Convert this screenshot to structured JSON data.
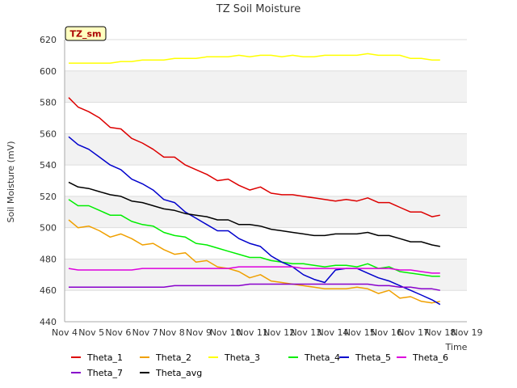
{
  "chart_data": {
    "type": "line",
    "title": "TZ Soil Moisture",
    "xlabel": "Time",
    "ylabel": "Soil Moisture (mV)",
    "badge": "TZ_sm",
    "ylim": [
      440,
      620
    ],
    "yticks": [
      440,
      460,
      480,
      500,
      520,
      540,
      560,
      580,
      600,
      620
    ],
    "xlim": [
      0,
      15
    ],
    "xticks": [
      {
        "v": 0,
        "label": "Nov 4"
      },
      {
        "v": 1,
        "label": "Nov 5"
      },
      {
        "v": 2,
        "label": "Nov 6"
      },
      {
        "v": 3,
        "label": "Nov 7"
      },
      {
        "v": 4,
        "label": "Nov 8"
      },
      {
        "v": 5,
        "label": "Nov 9"
      },
      {
        "v": 6,
        "label": "Nov 10"
      },
      {
        "v": 7,
        "label": "Nov 11"
      },
      {
        "v": 8,
        "label": "Nov 12"
      },
      {
        "v": 9,
        "label": "Nov 13"
      },
      {
        "v": 10,
        "label": "Nov 14"
      },
      {
        "v": 11,
        "label": "Nov 15"
      },
      {
        "v": 12,
        "label": "Nov 16"
      },
      {
        "v": 13,
        "label": "Nov 17"
      },
      {
        "v": 14,
        "label": "Nov 18"
      },
      {
        "v": 15,
        "label": "Nov 19"
      }
    ],
    "series": [
      {
        "name": "Theta_1",
        "color": "#dd0000",
        "x": [
          0.15,
          0.5,
          0.9,
          1.3,
          1.7,
          2.1,
          2.5,
          2.9,
          3.3,
          3.7,
          4.1,
          4.5,
          4.9,
          5.3,
          5.7,
          6.1,
          6.5,
          6.9,
          7.3,
          7.7,
          8.1,
          8.5,
          8.9,
          9.3,
          9.7,
          10.1,
          10.5,
          10.9,
          11.3,
          11.7,
          12.1,
          12.5,
          12.9,
          13.3,
          13.7,
          14.0
        ],
        "y": [
          583,
          577,
          574,
          570,
          564,
          563,
          557,
          554,
          550,
          545,
          545,
          540,
          537,
          534,
          530,
          531,
          527,
          524,
          526,
          522,
          521,
          521,
          520,
          519,
          518,
          517,
          518,
          517,
          519,
          516,
          516,
          513,
          510,
          510,
          507,
          508
        ]
      },
      {
        "name": "Theta_2",
        "color": "#f0a000",
        "x": [
          0.15,
          0.5,
          0.9,
          1.3,
          1.7,
          2.1,
          2.5,
          2.9,
          3.3,
          3.7,
          4.1,
          4.5,
          4.9,
          5.3,
          5.7,
          6.1,
          6.5,
          6.9,
          7.3,
          7.7,
          8.1,
          8.5,
          8.9,
          9.3,
          9.7,
          10.1,
          10.5,
          10.9,
          11.3,
          11.7,
          12.1,
          12.5,
          12.9,
          13.3,
          13.7,
          14.0
        ],
        "y": [
          505,
          500,
          501,
          498,
          494,
          496,
          493,
          489,
          490,
          486,
          483,
          484,
          478,
          479,
          475,
          474,
          472,
          468,
          470,
          466,
          465,
          464,
          463,
          462,
          461,
          461,
          461,
          462,
          461,
          458,
          460,
          455,
          456,
          453,
          452,
          453
        ]
      },
      {
        "name": "Theta_3",
        "color": "#ffff00",
        "x": [
          0.15,
          0.5,
          0.9,
          1.3,
          1.7,
          2.1,
          2.5,
          2.9,
          3.3,
          3.7,
          4.1,
          4.5,
          4.9,
          5.3,
          5.7,
          6.1,
          6.5,
          6.9,
          7.3,
          7.7,
          8.1,
          8.5,
          8.9,
          9.3,
          9.7,
          10.1,
          10.5,
          10.9,
          11.3,
          11.7,
          12.1,
          12.5,
          12.9,
          13.3,
          13.7,
          14.0
        ],
        "y": [
          605,
          605,
          605,
          605,
          605,
          606,
          606,
          607,
          607,
          607,
          608,
          608,
          608,
          609,
          609,
          609,
          610,
          609,
          610,
          610,
          609,
          610,
          609,
          609,
          610,
          610,
          610,
          610,
          611,
          610,
          610,
          610,
          608,
          608,
          607,
          607
        ]
      },
      {
        "name": "Theta_4",
        "color": "#00ee00",
        "x": [
          0.15,
          0.5,
          0.9,
          1.3,
          1.7,
          2.1,
          2.5,
          2.9,
          3.3,
          3.7,
          4.1,
          4.5,
          4.9,
          5.3,
          5.7,
          6.1,
          6.5,
          6.9,
          7.3,
          7.7,
          8.1,
          8.5,
          8.9,
          9.3,
          9.7,
          10.1,
          10.5,
          10.9,
          11.3,
          11.7,
          12.1,
          12.5,
          12.9,
          13.3,
          13.7,
          14.0
        ],
        "y": [
          518,
          514,
          514,
          511,
          508,
          508,
          504,
          502,
          501,
          497,
          495,
          494,
          490,
          489,
          487,
          485,
          483,
          481,
          481,
          479,
          478,
          477,
          477,
          476,
          475,
          476,
          476,
          475,
          477,
          474,
          475,
          472,
          471,
          470,
          469,
          469
        ]
      },
      {
        "name": "Theta_5",
        "color": "#0000cc",
        "x": [
          0.15,
          0.5,
          0.9,
          1.3,
          1.7,
          2.1,
          2.5,
          2.9,
          3.3,
          3.7,
          4.1,
          4.5,
          4.9,
          5.3,
          5.7,
          6.1,
          6.5,
          6.9,
          7.3,
          7.7,
          8.1,
          8.5,
          8.9,
          9.3,
          9.7,
          10.1,
          10.5,
          10.9,
          11.3,
          11.7,
          12.1,
          12.5,
          12.9,
          13.3,
          13.7,
          14.0
        ],
        "y": [
          558,
          553,
          550,
          545,
          540,
          537,
          531,
          528,
          524,
          518,
          516,
          510,
          506,
          502,
          498,
          498,
          493,
          490,
          488,
          482,
          478,
          475,
          470,
          467,
          465,
          473,
          474,
          474,
          471,
          468,
          466,
          463,
          460,
          457,
          454,
          451
        ]
      },
      {
        "name": "Theta_6",
        "color": "#dd00dd",
        "x": [
          0.15,
          0.5,
          0.9,
          1.3,
          1.7,
          2.1,
          2.5,
          2.9,
          3.3,
          3.7,
          4.1,
          4.5,
          4.9,
          5.3,
          5.7,
          6.1,
          6.5,
          6.9,
          7.3,
          7.7,
          8.1,
          8.5,
          8.9,
          9.3,
          9.7,
          10.1,
          10.5,
          10.9,
          11.3,
          11.7,
          12.1,
          12.5,
          12.9,
          13.3,
          13.7,
          14.0
        ],
        "y": [
          474,
          473,
          473,
          473,
          473,
          473,
          473,
          474,
          474,
          474,
          474,
          474,
          474,
          474,
          474,
          474,
          475,
          475,
          475,
          475,
          475,
          475,
          474,
          474,
          474,
          474,
          474,
          474,
          474,
          474,
          474,
          473,
          473,
          472,
          471,
          471
        ]
      },
      {
        "name": "Theta_7",
        "color": "#8800cc",
        "x": [
          0.15,
          0.5,
          0.9,
          1.3,
          1.7,
          2.1,
          2.5,
          2.9,
          3.3,
          3.7,
          4.1,
          4.5,
          4.9,
          5.3,
          5.7,
          6.1,
          6.5,
          6.9,
          7.3,
          7.7,
          8.1,
          8.5,
          8.9,
          9.3,
          9.7,
          10.1,
          10.5,
          10.9,
          11.3,
          11.7,
          12.1,
          12.5,
          12.9,
          13.3,
          13.7,
          14.0
        ],
        "y": [
          462,
          462,
          462,
          462,
          462,
          462,
          462,
          462,
          462,
          462,
          463,
          463,
          463,
          463,
          463,
          463,
          463,
          464,
          464,
          464,
          464,
          464,
          464,
          464,
          464,
          464,
          464,
          464,
          464,
          463,
          463,
          462,
          462,
          461,
          461,
          460
        ]
      },
      {
        "name": "Theta_avg",
        "color": "#000000",
        "x": [
          0.15,
          0.5,
          0.9,
          1.3,
          1.7,
          2.1,
          2.5,
          2.9,
          3.3,
          3.7,
          4.1,
          4.5,
          4.9,
          5.3,
          5.7,
          6.1,
          6.5,
          6.9,
          7.3,
          7.7,
          8.1,
          8.5,
          8.9,
          9.3,
          9.7,
          10.1,
          10.5,
          10.9,
          11.3,
          11.7,
          12.1,
          12.5,
          12.9,
          13.3,
          13.7,
          14.0
        ],
        "y": [
          529,
          526,
          525,
          523,
          521,
          520,
          517,
          516,
          514,
          512,
          511,
          509,
          508,
          507,
          505,
          505,
          502,
          502,
          501,
          499,
          498,
          497,
          496,
          495,
          495,
          496,
          496,
          496,
          497,
          495,
          495,
          493,
          491,
          491,
          489,
          488
        ]
      }
    ],
    "legend": [
      "Theta_1",
      "Theta_2",
      "Theta_3",
      "Theta_4",
      "Theta_5",
      "Theta_6",
      "Theta_7",
      "Theta_avg"
    ]
  }
}
